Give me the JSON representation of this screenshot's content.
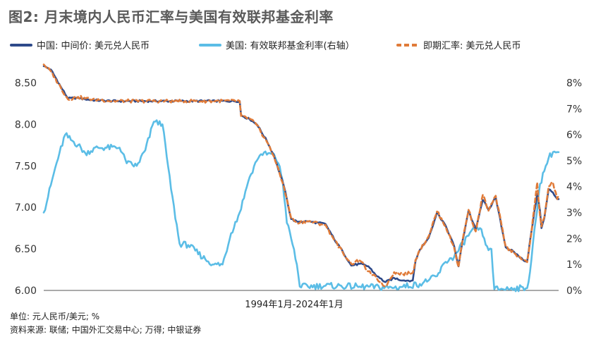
{
  "title": "图2: 月末境内人民币汇率与美国有效联邦基金利率",
  "legend": [
    {
      "label": "中国: 中间价: 美元兑人民币",
      "color": "#2e4a8a",
      "style": "solid"
    },
    {
      "label": "美国: 有效联邦基金利率(右轴）",
      "color": "#5bbde6",
      "style": "solid"
    },
    {
      "label": "即期汇率: 美元兑人民币",
      "color": "#e07b39",
      "style": "dashed"
    }
  ],
  "footnotes": {
    "unit": "单位: 元人民币/美元; %",
    "source": "资料来源: 联储; 中国外汇交易中心; 万得; 中银证券"
  },
  "chart_data": {
    "type": "line",
    "xlabel": "1994年1月-2024年1月",
    "x_range": [
      "1994-01",
      "2024-01"
    ],
    "y_left": {
      "ylim": [
        6.0,
        8.75
      ],
      "ticks": [
        "6.00",
        "6.50",
        "7.00",
        "7.50",
        "8.00",
        "8.50"
      ]
    },
    "y_right": {
      "ylim": [
        0,
        8.8
      ],
      "ticks": [
        "0%",
        "1%",
        "2%",
        "3%",
        "4%",
        "5%",
        "6%",
        "7%",
        "8%"
      ]
    },
    "grid": false,
    "legend_position": "top",
    "series": [
      {
        "name": "中国: 中间价: 美元兑人民币",
        "axis": "left",
        "points": [
          [
            "1994-01",
            8.7
          ],
          [
            "1994-06",
            8.66
          ],
          [
            "1995-01",
            8.45
          ],
          [
            "1995-06",
            8.31
          ],
          [
            "1996-01",
            8.32
          ],
          [
            "1996-06",
            8.3
          ],
          [
            "1997-01",
            8.29
          ],
          [
            "1998-01",
            8.28
          ],
          [
            "2000-01",
            8.28
          ],
          [
            "2002-01",
            8.28
          ],
          [
            "2004-01",
            8.28
          ],
          [
            "2005-06",
            8.28
          ],
          [
            "2005-07",
            8.11
          ],
          [
            "2006-01",
            8.06
          ],
          [
            "2006-06",
            8.0
          ],
          [
            "2007-01",
            7.8
          ],
          [
            "2007-06",
            7.62
          ],
          [
            "2008-01",
            7.25
          ],
          [
            "2008-06",
            6.86
          ],
          [
            "2008-10",
            6.83
          ],
          [
            "2009-06",
            6.83
          ],
          [
            "2010-06",
            6.8
          ],
          [
            "2010-12",
            6.62
          ],
          [
            "2011-06",
            6.47
          ],
          [
            "2011-12",
            6.3
          ],
          [
            "2012-06",
            6.32
          ],
          [
            "2012-12",
            6.29
          ],
          [
            "2013-06",
            6.17
          ],
          [
            "2013-12",
            6.1
          ],
          [
            "2014-06",
            6.15
          ],
          [
            "2014-12",
            6.12
          ],
          [
            "2015-07",
            6.12
          ],
          [
            "2015-09",
            6.36
          ],
          [
            "2015-12",
            6.49
          ],
          [
            "2016-06",
            6.63
          ],
          [
            "2016-12",
            6.94
          ],
          [
            "2017-06",
            6.78
          ],
          [
            "2017-12",
            6.53
          ],
          [
            "2018-03",
            6.29
          ],
          [
            "2018-06",
            6.61
          ],
          [
            "2018-10",
            6.96
          ],
          [
            "2019-03",
            6.73
          ],
          [
            "2019-08",
            7.09
          ],
          [
            "2019-12",
            6.97
          ],
          [
            "2020-05",
            7.12
          ],
          [
            "2020-12",
            6.52
          ],
          [
            "2021-06",
            6.46
          ],
          [
            "2021-12",
            6.37
          ],
          [
            "2022-03",
            6.35
          ],
          [
            "2022-06",
            6.71
          ],
          [
            "2022-10",
            7.16
          ],
          [
            "2022-12",
            6.96
          ],
          [
            "2023-01",
            6.75
          ],
          [
            "2023-03",
            6.87
          ],
          [
            "2023-06",
            7.22
          ],
          [
            "2023-09",
            7.18
          ],
          [
            "2023-12",
            7.1
          ],
          [
            "2024-01",
            7.1
          ]
        ]
      },
      {
        "name": "美国: 有效联邦基金利率(右轴）",
        "axis": "right",
        "points": [
          [
            "1994-01",
            3.0
          ],
          [
            "1994-04",
            3.6
          ],
          [
            "1994-08",
            4.5
          ],
          [
            "1994-12",
            5.3
          ],
          [
            "1995-04",
            6.0
          ],
          [
            "1995-08",
            5.8
          ],
          [
            "1996-01",
            5.6
          ],
          [
            "1996-06",
            5.3
          ],
          [
            "1997-03",
            5.5
          ],
          [
            "1998-06",
            5.5
          ],
          [
            "1998-11",
            4.9
          ],
          [
            "1999-06",
            4.8
          ],
          [
            "1999-12",
            5.4
          ],
          [
            "2000-06",
            6.5
          ],
          [
            "2000-12",
            6.4
          ],
          [
            "2001-06",
            3.9
          ],
          [
            "2001-12",
            1.8
          ],
          [
            "2002-06",
            1.75
          ],
          [
            "2003-06",
            1.2
          ],
          [
            "2003-12",
            1.0
          ],
          [
            "2004-06",
            1.0
          ],
          [
            "2004-12",
            2.2
          ],
          [
            "2005-06",
            3.0
          ],
          [
            "2005-12",
            4.2
          ],
          [
            "2006-06",
            5.0
          ],
          [
            "2006-09",
            5.25
          ],
          [
            "2007-06",
            5.25
          ],
          [
            "2007-09",
            4.9
          ],
          [
            "2007-12",
            4.25
          ],
          [
            "2008-03",
            2.6
          ],
          [
            "2008-06",
            2.0
          ],
          [
            "2008-10",
            1.0
          ],
          [
            "2008-12",
            0.15
          ],
          [
            "2010-06",
            0.18
          ],
          [
            "2012-06",
            0.15
          ],
          [
            "2014-06",
            0.1
          ],
          [
            "2015-12",
            0.25
          ],
          [
            "2016-06",
            0.38
          ],
          [
            "2016-12",
            0.55
          ],
          [
            "2017-06",
            1.1
          ],
          [
            "2017-12",
            1.3
          ],
          [
            "2018-06",
            1.8
          ],
          [
            "2018-12",
            2.3
          ],
          [
            "2019-06",
            2.4
          ],
          [
            "2019-09",
            2.0
          ],
          [
            "2019-12",
            1.55
          ],
          [
            "2020-02",
            1.6
          ],
          [
            "2020-04",
            0.05
          ],
          [
            "2021-06",
            0.08
          ],
          [
            "2022-02",
            0.08
          ],
          [
            "2022-04",
            0.33
          ],
          [
            "2022-06",
            1.2
          ],
          [
            "2022-08",
            2.3
          ],
          [
            "2022-10",
            3.1
          ],
          [
            "2022-12",
            4.1
          ],
          [
            "2023-03",
            4.6
          ],
          [
            "2023-06",
            5.1
          ],
          [
            "2023-09",
            5.33
          ],
          [
            "2023-12",
            5.33
          ],
          [
            "2024-01",
            5.33
          ]
        ]
      },
      {
        "name": "即期汇率: 美元兑人民币",
        "axis": "left",
        "points": [
          [
            "1994-01",
            8.72
          ],
          [
            "1994-06",
            8.64
          ],
          [
            "1995-01",
            8.44
          ],
          [
            "1995-06",
            8.3
          ],
          [
            "1996-01",
            8.33
          ],
          [
            "1996-06",
            8.31
          ],
          [
            "1997-01",
            8.3
          ],
          [
            "1998-01",
            8.28
          ],
          [
            "2000-01",
            8.28
          ],
          [
            "2002-01",
            8.28
          ],
          [
            "2004-01",
            8.28
          ],
          [
            "2005-06",
            8.28
          ],
          [
            "2005-07",
            8.1
          ],
          [
            "2006-01",
            8.07
          ],
          [
            "2006-06",
            7.99
          ],
          [
            "2007-01",
            7.79
          ],
          [
            "2007-06",
            7.61
          ],
          [
            "2008-01",
            7.24
          ],
          [
            "2008-06",
            6.87
          ],
          [
            "2008-10",
            6.82
          ],
          [
            "2009-06",
            6.83
          ],
          [
            "2010-06",
            6.79
          ],
          [
            "2010-12",
            6.61
          ],
          [
            "2011-06",
            6.46
          ],
          [
            "2011-12",
            6.32
          ],
          [
            "2012-06",
            6.36
          ],
          [
            "2012-12",
            6.23
          ],
          [
            "2013-06",
            6.14
          ],
          [
            "2013-12",
            6.05
          ],
          [
            "2014-06",
            6.22
          ],
          [
            "2014-12",
            6.2
          ],
          [
            "2015-07",
            6.21
          ],
          [
            "2015-09",
            6.37
          ],
          [
            "2015-12",
            6.49
          ],
          [
            "2016-06",
            6.65
          ],
          [
            "2016-12",
            6.95
          ],
          [
            "2017-06",
            6.77
          ],
          [
            "2017-12",
            6.51
          ],
          [
            "2018-03",
            6.28
          ],
          [
            "2018-06",
            6.62
          ],
          [
            "2018-10",
            6.97
          ],
          [
            "2019-03",
            6.71
          ],
          [
            "2019-08",
            7.15
          ],
          [
            "2019-12",
            6.96
          ],
          [
            "2020-05",
            7.14
          ],
          [
            "2020-12",
            6.53
          ],
          [
            "2021-06",
            6.45
          ],
          [
            "2021-12",
            6.37
          ],
          [
            "2022-03",
            6.34
          ],
          [
            "2022-06",
            6.7
          ],
          [
            "2022-10",
            7.3
          ],
          [
            "2022-12",
            6.9
          ],
          [
            "2023-01",
            6.77
          ],
          [
            "2023-03",
            6.88
          ],
          [
            "2023-06",
            7.25
          ],
          [
            "2023-09",
            7.3
          ],
          [
            "2023-12",
            7.1
          ],
          [
            "2024-01",
            7.15
          ]
        ]
      }
    ]
  }
}
